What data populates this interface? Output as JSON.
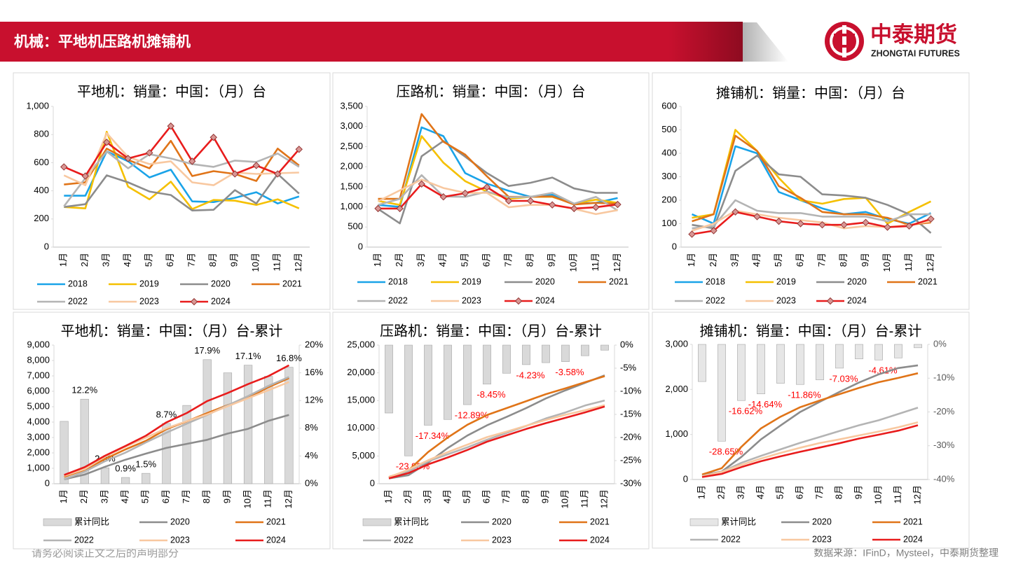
{
  "header": {
    "title": "机械：平地机压路机摊铺机",
    "logo_cn": "中泰期货",
    "logo_en": "ZHONGTAI FUTURES"
  },
  "footer": {
    "disclaimer": "请务必阅读正文之后的声明部分",
    "source": "数据来源：IFinD，Mysteel，中泰期货整理"
  },
  "chart_data": [
    {
      "type": "line",
      "title": "平地机：销量：中国：（月）台",
      "categories": [
        "1月",
        "2月",
        "3月",
        "4月",
        "5月",
        "6月",
        "7月",
        "8月",
        "9月",
        "10月",
        "11月",
        "12月"
      ],
      "ylim": [
        0,
        1000
      ],
      "yticks": [
        0,
        200,
        400,
        600,
        800,
        {
          "value": 1000,
          "label": "1,000"
        }
      ],
      "series": [
        {
          "name": "2018",
          "color": "#1aa3e8",
          "values": [
            365,
            365,
            680,
            610,
            495,
            550,
            325,
            320,
            350,
            390,
            310,
            360
          ]
        },
        {
          "name": "2019",
          "color": "#f5c000",
          "values": [
            285,
            275,
            820,
            430,
            340,
            465,
            270,
            335,
            330,
            300,
            340,
            275
          ]
        },
        {
          "name": "2020",
          "color": "#8c8c8c",
          "values": [
            285,
            305,
            510,
            460,
            395,
            370,
            260,
            265,
            405,
            310,
            520,
            380
          ]
        },
        {
          "name": "2021",
          "color": "#e07418",
          "values": [
            445,
            460,
            700,
            620,
            560,
            755,
            505,
            540,
            520,
            470,
            700,
            580
          ]
        },
        {
          "name": "2022",
          "color": "#b4b4b4",
          "values": [
            290,
            490,
            680,
            560,
            660,
            630,
            590,
            570,
            615,
            605,
            665,
            570
          ]
        },
        {
          "name": "2023",
          "color": "#f8c8a0",
          "values": [
            510,
            440,
            810,
            640,
            590,
            610,
            460,
            440,
            530,
            520,
            525,
            530
          ]
        },
        {
          "name": "2024",
          "color": "#e81c1c",
          "marker": "diamond",
          "values": [
            570,
            505,
            745,
            630,
            670,
            860,
            610,
            780,
            520,
            580,
            520,
            695
          ]
        }
      ]
    },
    {
      "type": "line",
      "title": "压路机：销量：中国：（月）台",
      "categories": [
        "1月",
        "2月",
        "3月",
        "4月",
        "5月",
        "6月",
        "7月",
        "8月",
        "9月",
        "10月",
        "11月",
        "12月"
      ],
      "ylim": [
        0,
        3500
      ],
      "yticks": [
        0,
        500,
        {
          "value": 1000,
          "label": "1,000"
        },
        {
          "value": 1500,
          "label": "1,500"
        },
        {
          "value": 2000,
          "label": "2,000"
        },
        {
          "value": 2500,
          "label": "2,500"
        },
        {
          "value": 3000,
          "label": "3,000"
        },
        {
          "value": 3500,
          "label": "3,500"
        }
      ],
      "series": [
        {
          "name": "2018",
          "color": "#1aa3e8",
          "values": [
            1050,
            1000,
            2980,
            2760,
            1840,
            1580,
            1400,
            1250,
            1300,
            1080,
            1100,
            1220
          ]
        },
        {
          "name": "2019",
          "color": "#f5c000",
          "values": [
            1150,
            1050,
            2760,
            2100,
            1640,
            1380,
            1200,
            1250,
            1250,
            1080,
            1180,
            1100
          ]
        },
        {
          "name": "2020",
          "color": "#8c8c8c",
          "values": [
            950,
            590,
            2260,
            2640,
            2250,
            1840,
            1520,
            1600,
            1730,
            1460,
            1350,
            1350
          ]
        },
        {
          "name": "2021",
          "color": "#e07418",
          "values": [
            1200,
            1200,
            3310,
            2620,
            2300,
            1760,
            1250,
            1250,
            1260,
            1060,
            1100,
            1080
          ]
        },
        {
          "name": "2022",
          "color": "#b4b4b4",
          "values": [
            1050,
            1200,
            1790,
            1260,
            1250,
            1380,
            1240,
            1250,
            1350,
            1080,
            1250,
            910
          ]
        },
        {
          "name": "2023",
          "color": "#f8c8a0",
          "values": [
            1140,
            1410,
            1680,
            1470,
            1350,
            1350,
            990,
            1050,
            1050,
            950,
            820,
            920
          ]
        },
        {
          "name": "2024",
          "color": "#e81c1c",
          "marker": "diamond",
          "values": [
            960,
            960,
            1570,
            1250,
            1340,
            1490,
            1150,
            1150,
            1050,
            960,
            990,
            1060
          ]
        }
      ]
    },
    {
      "type": "line",
      "title": "摊铺机：销量：中国：（月）台",
      "categories": [
        "1月",
        "2月",
        "3月",
        "4月",
        "5月",
        "6月",
        "7月",
        "8月",
        "9月",
        "10月",
        "11月",
        "12月"
      ],
      "ylim": [
        0,
        600
      ],
      "yticks": [
        0,
        100,
        200,
        300,
        400,
        500,
        600
      ],
      "series": [
        {
          "name": "2018",
          "color": "#1aa3e8",
          "values": [
            140,
            100,
            430,
            400,
            235,
            200,
            165,
            140,
            150,
            120,
            100,
            145
          ]
        },
        {
          "name": "2019",
          "color": "#f5c000",
          "values": [
            125,
            140,
            500,
            410,
            295,
            200,
            185,
            205,
            210,
            100,
            150,
            195
          ]
        },
        {
          "name": "2020",
          "color": "#8c8c8c",
          "values": [
            95,
            80,
            325,
            390,
            310,
            300,
            225,
            220,
            210,
            180,
            140,
            60
          ]
        },
        {
          "name": "2021",
          "color": "#e07418",
          "values": [
            110,
            140,
            475,
            410,
            260,
            210,
            150,
            140,
            140,
            125,
            95,
            105
          ]
        },
        {
          "name": "2022",
          "color": "#b4b4b4",
          "values": [
            80,
            90,
            200,
            155,
            145,
            145,
            130,
            130,
            130,
            110,
            140,
            140
          ]
        },
        {
          "name": "2023",
          "color": "#f8c8a0",
          "values": [
            70,
            100,
            155,
            140,
            125,
            115,
            105,
            80,
            90,
            85,
            95,
            110
          ]
        },
        {
          "name": "2024",
          "color": "#e81c1c",
          "marker": "diamond",
          "values": [
            55,
            70,
            150,
            130,
            110,
            100,
            95,
            95,
            105,
            85,
            90,
            120
          ]
        }
      ]
    },
    {
      "type": "combo",
      "title": "平地机：销量：中国：（月）台-累计",
      "categories": [
        "1月",
        "2月",
        "3月",
        "4月",
        "5月",
        "6月",
        "7月",
        "8月",
        "9月",
        "10月",
        "11月",
        "12月"
      ],
      "ylim": [
        0,
        9000
      ],
      "yticks": [
        0,
        {
          "value": 1000,
          "label": "1,000"
        },
        {
          "value": 2000,
          "label": "2,000"
        },
        {
          "value": 3000,
          "label": "3,000"
        },
        {
          "value": 4000,
          "label": "4,000"
        },
        {
          "value": 5000,
          "label": "5,000"
        },
        {
          "value": 6000,
          "label": "6,000"
        },
        {
          "value": 7000,
          "label": "7,000"
        },
        {
          "value": 8000,
          "label": "8,000"
        },
        {
          "value": 9000,
          "label": "9,000"
        }
      ],
      "y2lim": [
        0,
        20
      ],
      "y2ticks": [
        {
          "value": 0,
          "label": "0%"
        },
        {
          "value": 4,
          "label": "4%"
        },
        {
          "value": 8,
          "label": "8%"
        },
        {
          "value": 12,
          "label": "12%"
        },
        {
          "value": 16,
          "label": "16%"
        },
        {
          "value": 20,
          "label": "20%"
        }
      ],
      "series": [
        {
          "name": "累计同比",
          "type": "bar",
          "axis": "y2",
          "color": "#d9d9d9",
          "value_label_color": "#000000",
          "values": [
            9,
            12.2,
            2.3,
            0.9,
            1.5,
            8.7,
            11.3,
            17.9,
            16,
            17.1,
            15.5,
            16.8
          ],
          "value_labels": [
            null,
            "12.2%",
            "2.3%",
            "0.9%",
            "1.5%",
            "8.7%",
            null,
            "17.9%",
            null,
            "17.1%",
            null,
            "16.8%"
          ]
        },
        {
          "name": "2020",
          "color": "#8c8c8c",
          "values": [
            285,
            590,
            1100,
            1560,
            1955,
            2325,
            2585,
            2850,
            3255,
            3565,
            4085,
            4465
          ]
        },
        {
          "name": "2021",
          "color": "#e07418",
          "values": [
            445,
            905,
            1605,
            2225,
            2785,
            3540,
            4045,
            4585,
            5105,
            5575,
            6275,
            6855
          ]
        },
        {
          "name": "2022",
          "color": "#b4b4b4",
          "values": [
            290,
            780,
            1460,
            2020,
            2680,
            3310,
            3900,
            4470,
            5085,
            5690,
            6355,
            6925
          ]
        },
        {
          "name": "2023",
          "color": "#f8c8a0",
          "values": [
            510,
            950,
            1760,
            2400,
            2990,
            3600,
            4060,
            4500,
            5030,
            5550,
            6075,
            6605
          ]
        },
        {
          "name": "2024",
          "color": "#e81c1c",
          "values": [
            570,
            1075,
            1820,
            2450,
            3120,
            3980,
            4590,
            5370,
            5890,
            6470,
            6990,
            7685
          ]
        }
      ]
    },
    {
      "type": "combo",
      "title": "压路机：销量：中国：（月）台-累计",
      "categories": [
        "1月",
        "2月",
        "3月",
        "4月",
        "5月",
        "6月",
        "7月",
        "8月",
        "9月",
        "10月",
        "11月",
        "12月"
      ],
      "ylim": [
        0,
        25000
      ],
      "yticks": [
        0,
        {
          "value": 5000,
          "label": "5,000"
        },
        {
          "value": 10000,
          "label": "10,000"
        },
        {
          "value": 15000,
          "label": "15,000"
        },
        {
          "value": 20000,
          "label": "20,000"
        },
        {
          "value": 25000,
          "label": "25,000"
        }
      ],
      "y2lim": [
        -30,
        0
      ],
      "y2ticks": [
        {
          "value": 0,
          "label": "0%"
        },
        {
          "value": -5,
          "label": "-5%"
        },
        {
          "value": -10,
          "label": "-10%"
        },
        {
          "value": -15,
          "label": "-15%"
        },
        {
          "value": -20,
          "label": "-20%"
        },
        {
          "value": -25,
          "label": "-25%"
        },
        {
          "value": -30,
          "label": "-30%"
        }
      ],
      "series": [
        {
          "name": "累计同比",
          "type": "bar",
          "axis": "y2",
          "color": "#d9d9d9",
          "value_label_color": "#ff0000",
          "values": [
            -14.7,
            -23.98,
            -17.34,
            -16.1,
            -12.89,
            -8.45,
            -6.1,
            -4.23,
            -3.8,
            -3.58,
            -2.3,
            -1.1
          ],
          "value_labels": [
            null,
            "-23.98%",
            "-17.34%",
            null,
            "-12.89%",
            "-8.45%",
            null,
            "-4.23%",
            null,
            "-3.58%",
            null,
            null
          ]
        },
        {
          "name": "2020",
          "color": "#8c8c8c",
          "values": [
            950,
            1540,
            3800,
            6440,
            8690,
            10530,
            12050,
            13650,
            15380,
            16840,
            18190,
            19540
          ]
        },
        {
          "name": "2021",
          "color": "#e07418",
          "values": [
            1200,
            2400,
            5710,
            8330,
            10630,
            12390,
            13640,
            14890,
            16150,
            17210,
            18310,
            19390
          ]
        },
        {
          "name": "2022",
          "color": "#b4b4b4",
          "values": [
            1050,
            2250,
            4040,
            5300,
            6550,
            7930,
            9170,
            10420,
            11770,
            12850,
            14100,
            15010
          ]
        },
        {
          "name": "2023",
          "color": "#f8c8a0",
          "values": [
            1140,
            2550,
            4230,
            5700,
            7050,
            8400,
            9390,
            10440,
            11490,
            12440,
            13260,
            14180
          ]
        },
        {
          "name": "2024",
          "color": "#e81c1c",
          "values": [
            960,
            1920,
            3490,
            4740,
            6080,
            7570,
            8720,
            9870,
            10920,
            11880,
            12870,
            13930
          ]
        }
      ]
    },
    {
      "type": "combo",
      "title": "摊铺机：销量：中国：（月）台-累计",
      "categories": [
        "1月",
        "2月",
        "3月",
        "4月",
        "5月",
        "6月",
        "7月",
        "8月",
        "9月",
        "10月",
        "11月",
        "12月"
      ],
      "ylim": [
        0,
        3000
      ],
      "yticks": [
        0,
        {
          "value": 1000,
          "label": "1,000"
        },
        {
          "value": 2000,
          "label": "2,000"
        },
        {
          "value": 3000,
          "label": "3,000"
        }
      ],
      "y2lim": [
        -40,
        0
      ],
      "y2ticks": [
        {
          "value": 0,
          "label": "0%"
        },
        {
          "value": -10,
          "label": "-10%"
        },
        {
          "value": -20,
          "label": "-20%"
        },
        {
          "value": -30,
          "label": "-30%"
        },
        {
          "value": -40,
          "label": "-40%"
        }
      ],
      "series": [
        {
          "name": "累计同比",
          "type": "bar",
          "axis": "y2",
          "color": "#e6e6e6",
          "value_label_color": "#ff0000",
          "values": [
            -11,
            -28.65,
            -16.62,
            -14.64,
            -11.5,
            -11.86,
            -10.5,
            -7.03,
            -4.3,
            -4.61,
            -4,
            -1
          ],
          "value_labels": [
            null,
            "-28.65%",
            "-16.62%",
            "-14.64%",
            null,
            "-11.86%",
            null,
            "-7.03%",
            null,
            "-4.61%",
            null,
            null
          ]
        },
        {
          "name": "2020",
          "color": "#8c8c8c",
          "values": [
            95,
            175,
            500,
            890,
            1200,
            1500,
            1725,
            1945,
            2155,
            2335,
            2475,
            2535
          ]
        },
        {
          "name": "2021",
          "color": "#e07418",
          "values": [
            110,
            250,
            725,
            1135,
            1395,
            1605,
            1755,
            1895,
            2035,
            2160,
            2255,
            2360
          ]
        },
        {
          "name": "2022",
          "color": "#b4b4b4",
          "values": [
            80,
            170,
            370,
            525,
            670,
            815,
            945,
            1075,
            1205,
            1315,
            1455,
            1595
          ]
        },
        {
          "name": "2023",
          "color": "#f8c8a0",
          "values": [
            70,
            170,
            325,
            465,
            590,
            705,
            810,
            890,
            980,
            1065,
            1160,
            1270
          ]
        },
        {
          "name": "2024",
          "color": "#e81c1c",
          "values": [
            55,
            125,
            275,
            405,
            515,
            615,
            710,
            805,
            910,
            995,
            1085,
            1205
          ]
        }
      ]
    }
  ]
}
